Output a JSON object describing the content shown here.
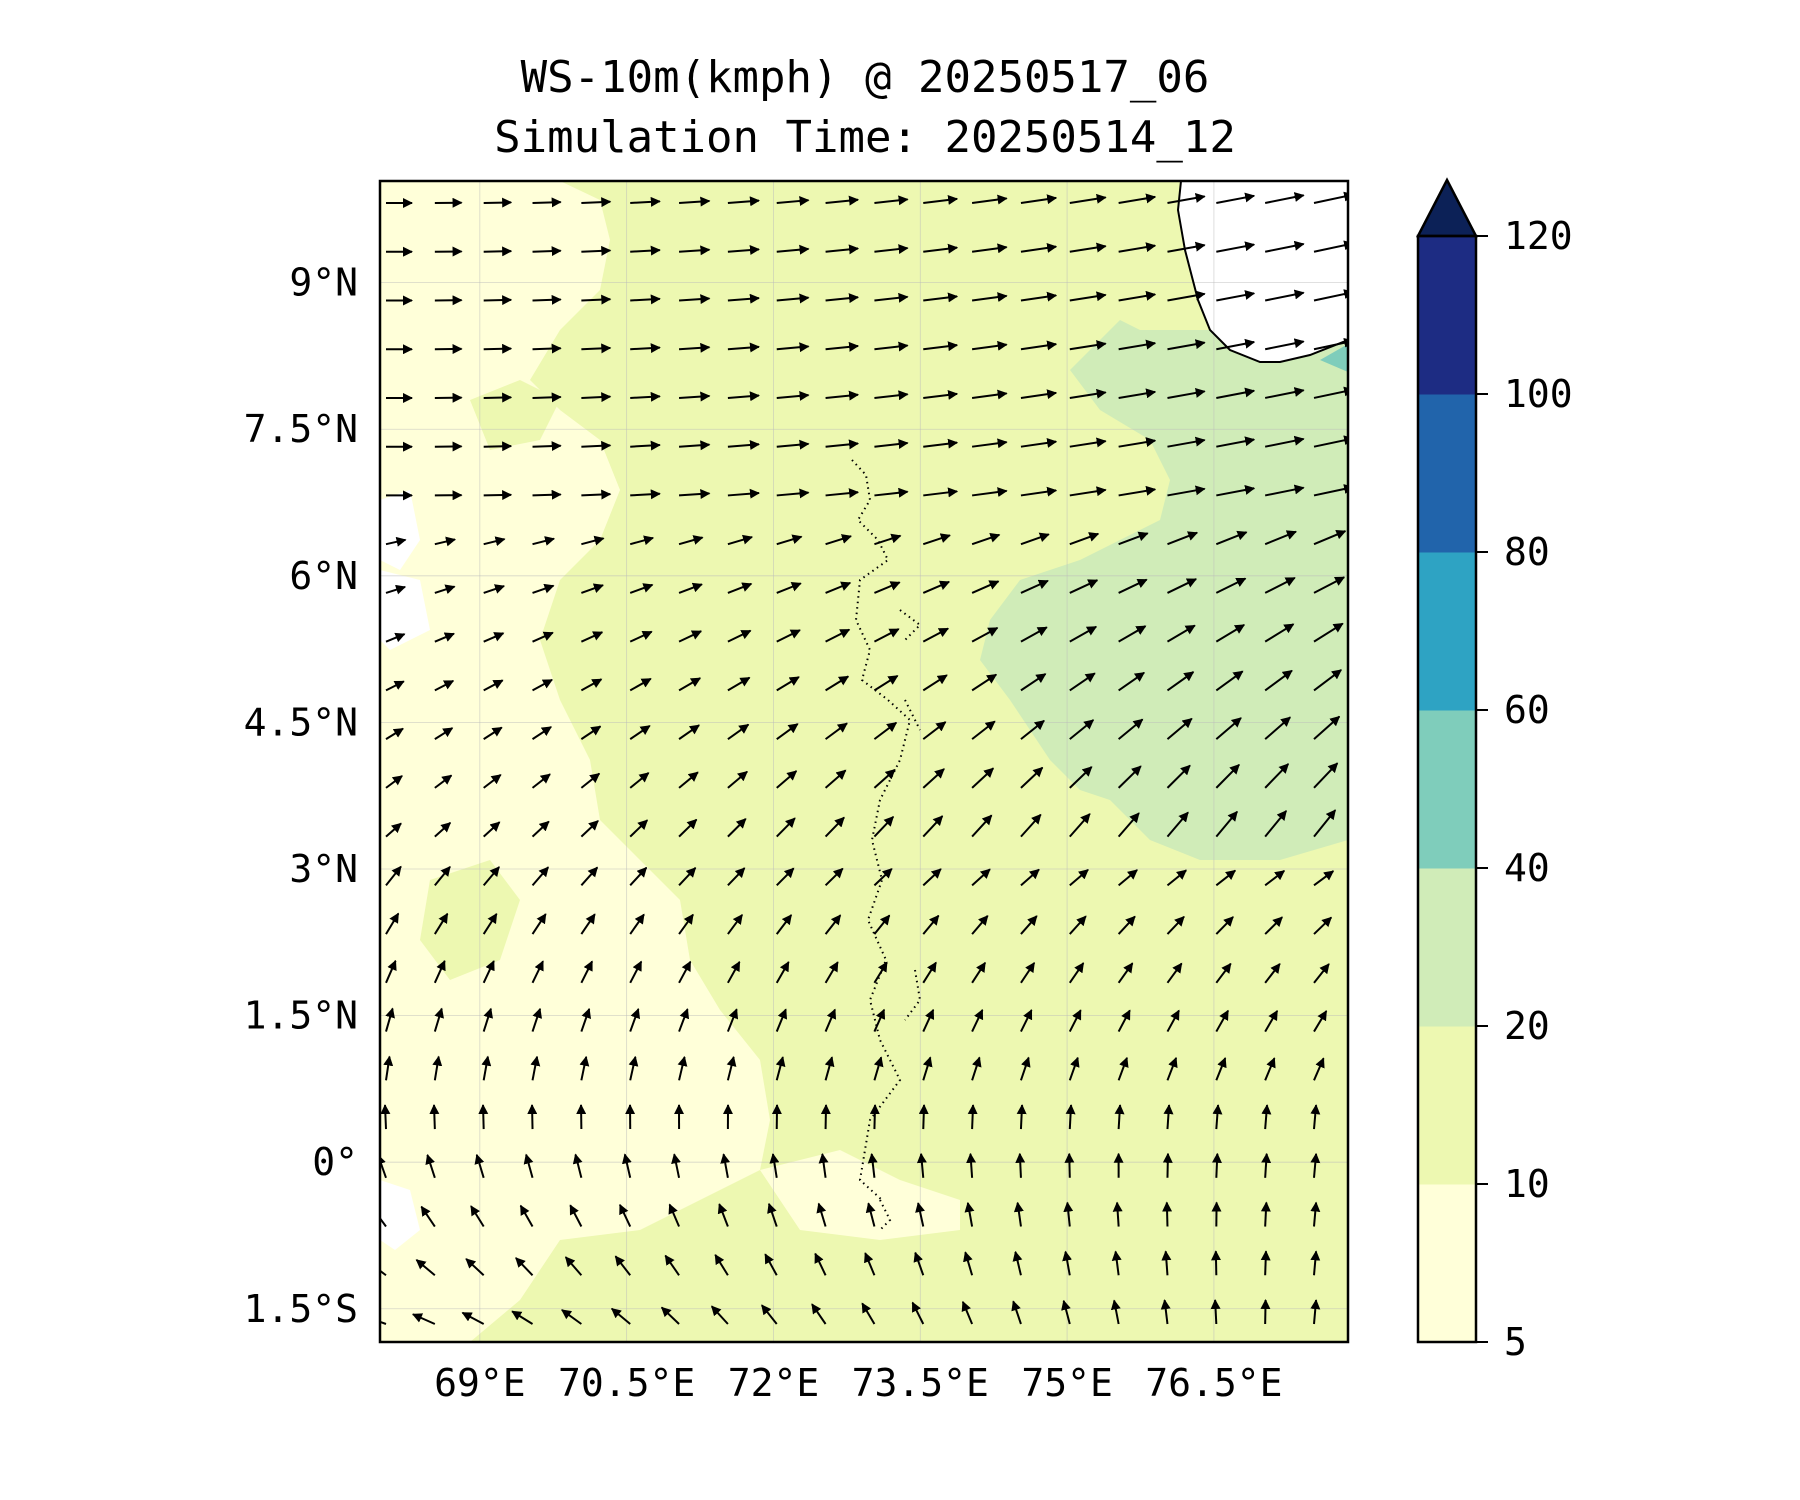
{
  "title": "WS-10m(kmph) @ 20250517_06",
  "subtitle": "Simulation Time: 20250514_12",
  "map": {
    "lon_range": [
      67.98,
      77.87
    ],
    "lat_range": [
      -1.84,
      10.04
    ],
    "lon_ticks": [
      {
        "value": 69,
        "label": "69°E"
      },
      {
        "value": 70.5,
        "label": "70.5°E"
      },
      {
        "value": 72,
        "label": "72°E"
      },
      {
        "value": 73.5,
        "label": "73.5°E"
      },
      {
        "value": 75,
        "label": "75°E"
      },
      {
        "value": 76.5,
        "label": "76.5°E"
      }
    ],
    "lat_ticks": [
      {
        "value": 9,
        "label": "9°N"
      },
      {
        "value": 7.5,
        "label": "7.5°N"
      },
      {
        "value": 6,
        "label": "6°N"
      },
      {
        "value": 4.5,
        "label": "4.5°N"
      },
      {
        "value": 3,
        "label": "3°N"
      },
      {
        "value": 1.5,
        "label": "1.5°N"
      },
      {
        "value": 0,
        "label": "0°"
      },
      {
        "value": -1.5,
        "label": "1.5°S"
      }
    ],
    "gridlines": true,
    "coastline": "southern India tip and Sri Lanka (top-right), Maldives atolls (center, dotted)"
  },
  "colorbar": {
    "levels": [
      {
        "label": "5",
        "value": 5
      },
      {
        "label": "10",
        "value": 10
      },
      {
        "label": "20",
        "value": 20
      },
      {
        "label": "40",
        "value": 40
      },
      {
        "label": "60",
        "value": 60
      },
      {
        "label": "80",
        "value": 80
      },
      {
        "label": "100",
        "value": 100
      },
      {
        "label": "120",
        "value": 120
      }
    ],
    "colors": [
      "#ffffd9",
      "#edf8b1",
      "#d0ecb8",
      "#7fcdbb",
      "#2ea3c3",
      "#2164ab",
      "#1d2c83"
    ],
    "extend_color": "#0c2157",
    "extend": "max"
  },
  "chart_data": {
    "type": "contourf+quiver",
    "title": "WS-10m(kmph) @ 20250517_06",
    "subtitle": "Simulation Time: 20250514_12",
    "variable": "10 m wind speed (kmph)",
    "xlabel": "",
    "ylabel": "",
    "xlim": [
      67.98,
      77.87
    ],
    "ylim": [
      -1.84,
      10.04
    ],
    "speed_regions": [
      {
        "range": "5-10",
        "area": "west and south-west, small pockets below 5 near 68°E"
      },
      {
        "range": "10-20",
        "area": "most of the domain"
      },
      {
        "range": "20-40",
        "area": "north-east quadrant, roughly east of 75°E between 3°N and 8.5°N"
      },
      {
        "range": "40-60",
        "area": "small patch off southern India near 77.8°E 8.1°N"
      }
    ],
    "wind_pattern": [
      {
        "region": "north of 6°N",
        "direction": "westerly, turning west-south-westerly east of 75°E",
        "strength": "moderate to strong"
      },
      {
        "region": "2°N to 6°N",
        "direction": "south-westerly",
        "strength": "moderate"
      },
      {
        "region": "equator to 2°N",
        "direction": "southerly",
        "strength": "weak to moderate"
      },
      {
        "region": "south of 0° west of 73°E",
        "direction": "easterly to south-easterly",
        "strength": "weak to moderate"
      },
      {
        "region": "south of 0° east of 74°E",
        "direction": "southerly",
        "strength": "moderate"
      }
    ]
  }
}
